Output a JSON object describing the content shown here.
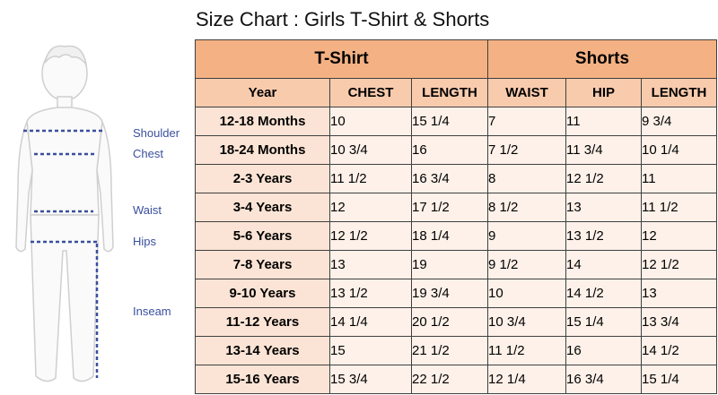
{
  "title": "Size Chart : Girls T-Shirt & Shorts",
  "figure": {
    "labels": {
      "shoulder": "Shoulder",
      "chest": "Chest",
      "waist": "Waist",
      "hips": "Hips",
      "inseam": "Inseam"
    },
    "line_color": "#3a4f9e"
  },
  "table": {
    "groups": {
      "tshirt": "T-Shirt",
      "shorts": "Shorts"
    },
    "columns": {
      "year": "Year",
      "chest": "CHEST",
      "tshirt_length": "LENGTH",
      "waist": "WAIST",
      "hip": "HIP",
      "shorts_length": "LENGTH"
    },
    "rows": [
      {
        "year": "12-18 Months",
        "chest": "10",
        "tlength": "15 1/4",
        "waist": "7",
        "hip": "11",
        "slength": "9 3/4"
      },
      {
        "year": "18-24 Months",
        "chest": "10 3/4",
        "tlength": "16",
        "waist": "7 1/2",
        "hip": "11 3/4",
        "slength": "10 1/4"
      },
      {
        "year": "2-3 Years",
        "chest": "11 1/2",
        "tlength": "16 3/4",
        "waist": "8",
        "hip": "12 1/2",
        "slength": "11"
      },
      {
        "year": "3-4 Years",
        "chest": "12",
        "tlength": "17 1/2",
        "waist": "8 1/2",
        "hip": "13",
        "slength": "11 1/2"
      },
      {
        "year": "5-6 Years",
        "chest": "12 1/2",
        "tlength": "18 1/4",
        "waist": "9",
        "hip": "13 1/2",
        "slength": "12"
      },
      {
        "year": "7-8 Years",
        "chest": "13",
        "tlength": "19",
        "waist": "9 1/2",
        "hip": "14",
        "slength": "12 1/2"
      },
      {
        "year": "9-10 Years",
        "chest": "13 1/2",
        "tlength": "19 3/4",
        "waist": "10",
        "hip": "14 1/2",
        "slength": "13"
      },
      {
        "year": "11-12 Years",
        "chest": "14 1/4",
        "tlength": "20 1/2",
        "waist": "10 3/4",
        "hip": "15 1/4",
        "slength": "13 3/4"
      },
      {
        "year": "13-14 Years",
        "chest": "15",
        "tlength": "21 1/2",
        "waist": "11 1/2",
        "hip": "16",
        "slength": "14 1/2"
      },
      {
        "year": "15-16 Years",
        "chest": "15 3/4",
        "tlength": "22 1/2",
        "waist": "12 1/4",
        "hip": "16 3/4",
        "slength": "15 1/4"
      }
    ],
    "colors": {
      "group_header": "#f4b183",
      "column_header": "#f8cbad",
      "year_cell": "#fbe4d5",
      "value_cell": "#fdf1e9"
    }
  }
}
